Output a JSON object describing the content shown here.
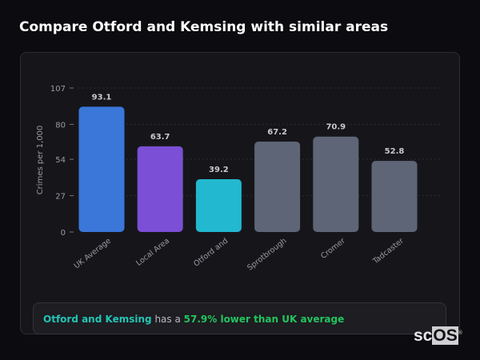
{
  "title": "Compare Otford and Kemsing with similar areas",
  "chart_data": {
    "type": "bar",
    "categories": [
      "UK Average",
      "Local Area",
      "Otford and",
      "Sprotbrough",
      "Cromer",
      "Tadcaster"
    ],
    "values": [
      93.1,
      63.7,
      39.2,
      67.2,
      70.9,
      52.8
    ],
    "value_labels": [
      "93.1",
      "63.7",
      "39.2",
      "67.2",
      "70.9",
      "52.8"
    ],
    "colors": [
      "#3a77d9",
      "#7b4fd6",
      "#22b8cf",
      "#5d6577",
      "#5d6577",
      "#5d6577"
    ],
    "ylabel": "Crimes per 1,000",
    "ylim": [
      0,
      107
    ],
    "yticks": [
      "0",
      "27",
      "54",
      "80",
      "107"
    ],
    "ytick_values": [
      0,
      27,
      54,
      80,
      107
    ],
    "grid": true
  },
  "summary": {
    "area": "Otford and Kemsing",
    "middle": " has a ",
    "comparison": "57.9% lower than UK average"
  },
  "logo": {
    "text_a": "sc",
    "text_b": "OS",
    "mark": "®"
  }
}
